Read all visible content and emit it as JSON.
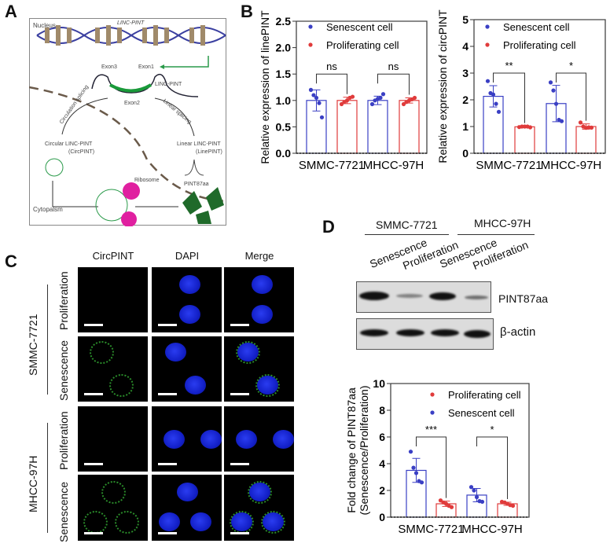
{
  "panel_labels": {
    "a": "A",
    "b": "B",
    "c": "C",
    "d": "D"
  },
  "panel_a": {
    "nucleus": "Nucleus",
    "gene": "LINC-PINT",
    "exon3": "Exon3",
    "exon1": "Exon1",
    "exon2": "Exon2",
    "transcript": "LINC-PINT",
    "circ_splicing": "Circulation splicing",
    "linear_splicing": "Linear splicing",
    "circular": "Circular LINC-PINT",
    "circular_abbr": "(CircPINT)",
    "linear": "Linear LINC-PINT",
    "linear_abbr": "(LinePINT)",
    "ribosome": "Ribosome",
    "peptide": "PINT87aa",
    "cytoplasm": "Cytopalsm"
  },
  "panel_c": {
    "columns": [
      "CircPINT",
      "DAPI",
      "Merge"
    ],
    "groups": [
      "SMMC-7721",
      "MHCC-97H"
    ],
    "rows": [
      "Proliferation",
      "Senescence",
      "Proliferation",
      "Senescence"
    ]
  },
  "panel_d_blot": {
    "groups": [
      "SMMC-7721",
      "MHCC-97H"
    ],
    "lanes": [
      "Senescence",
      "Proliferation",
      "Senescence",
      "Proliferation"
    ],
    "bands": [
      "PINT87aa",
      "β-actin"
    ]
  },
  "colors": {
    "senescent": "#3a3fc4",
    "proliferating": "#e03b3b",
    "dapi": "#1a2ae0",
    "circpint": "#3cc83c"
  },
  "chart_data": [
    {
      "type": "bar",
      "ylabel": "Relative expression of linePINT",
      "ylim": [
        0,
        2.5
      ],
      "yticks": [
        "0.0",
        "0.5",
        "1.0",
        "1.5",
        "2.0",
        "2.5"
      ],
      "categories": [
        "SMMC-7721",
        "MHCC-97H"
      ],
      "legend": "top-right",
      "grid": false,
      "series": [
        {
          "name": "Senescent cell",
          "means": [
            1.0,
            1.0
          ],
          "sd": [
            0.2,
            0.08
          ],
          "points": [
            [
              1.2,
              1.1,
              1.05,
              0.95,
              0.68
            ],
            [
              0.93,
              1.0,
              1.03,
              1.05,
              1.12
            ]
          ]
        },
        {
          "name": "Proliferating cell",
          "means": [
            1.0,
            1.0
          ],
          "sd": [
            0.06,
            0.05
          ],
          "points": [
            [
              0.93,
              0.97,
              1.0,
              1.05,
              1.07
            ],
            [
              0.93,
              0.97,
              1.0,
              1.02,
              1.05
            ]
          ]
        }
      ],
      "significance": [
        "ns",
        "ns"
      ]
    },
    {
      "type": "bar",
      "ylabel": "Relative expression of circPINT",
      "ylim": [
        0,
        5
      ],
      "yticks": [
        "0",
        "1",
        "2",
        "3",
        "4",
        "5"
      ],
      "categories": [
        "SMMC-7721",
        "MHCC-97H"
      ],
      "legend": "top-right",
      "grid": false,
      "series": [
        {
          "name": "Senescent cell",
          "means": [
            2.13,
            1.86
          ],
          "sd": [
            0.4,
            0.68
          ],
          "points": [
            [
              2.7,
              2.25,
              2.2,
              1.85,
              1.55
            ],
            [
              2.65,
              2.35,
              1.85,
              1.25,
              1.2
            ]
          ]
        },
        {
          "name": "Proliferating cell",
          "means": [
            0.99,
            1.0
          ],
          "sd": [
            0.02,
            0.1
          ],
          "points": [
            [
              0.98,
              1.0,
              1.0,
              1.0,
              0.97
            ],
            [
              1.15,
              1.0,
              0.95,
              0.97,
              0.96
            ]
          ]
        }
      ],
      "significance": [
        "**",
        "*"
      ]
    },
    {
      "type": "bar",
      "ylabel": "Fold change of PINT87aa",
      "ylabel2": "(Senescence/Proliferation)",
      "ylim": [
        0,
        10
      ],
      "yticks": [
        "0",
        "2",
        "4",
        "6",
        "8",
        "10"
      ],
      "categories": [
        "SMMC-7721",
        "MHCC-97H"
      ],
      "legend": "top-right",
      "grid": false,
      "series": [
        {
          "name": "Senescent cell",
          "means": [
            3.5,
            1.65
          ],
          "sd": [
            0.9,
            0.5
          ],
          "points": [
            [
              4.9,
              3.7,
              3.3,
              2.7,
              2.6
            ],
            [
              2.25,
              2.0,
              1.5,
              1.2,
              1.15
            ]
          ]
        },
        {
          "name": "Proliferating cell",
          "means": [
            1.0,
            1.0
          ],
          "sd": [
            0.2,
            0.12
          ],
          "points": [
            [
              1.25,
              1.1,
              1.0,
              0.85,
              0.75
            ],
            [
              1.15,
              1.1,
              1.0,
              0.9,
              0.85
            ]
          ]
        }
      ],
      "legend_order": [
        "Proliferating cell",
        "Senescent cell"
      ],
      "significance": [
        "***",
        "*"
      ]
    }
  ]
}
